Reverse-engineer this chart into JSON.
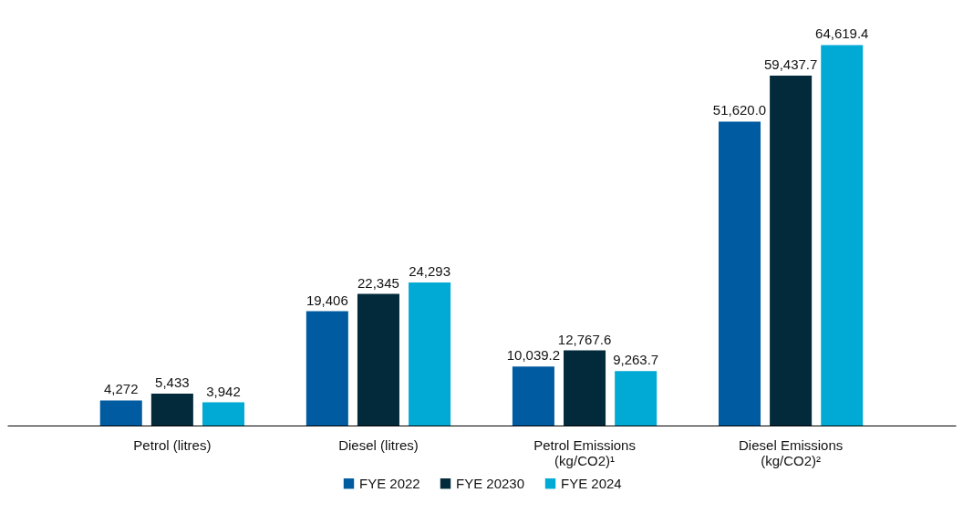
{
  "chart_data": {
    "type": "bar",
    "categories": [
      "Petrol (litres)",
      "Diesel (litres)",
      "Petrol Emissions (kg/CO2)¹",
      "Diesel Emissions (kg/CO2)²"
    ],
    "series": [
      {
        "name": "FYE 2022",
        "color": "#005ba1",
        "values": [
          4272,
          19406,
          10039.2,
          51620.0
        ],
        "value_labels": [
          "4,272",
          "19,406",
          "10,039.2",
          "51,620.0"
        ]
      },
      {
        "name": "FYE 20230",
        "color": "#022a3a",
        "values": [
          5433,
          22345,
          12767.6,
          59437.7
        ],
        "value_labels": [
          "5,433",
          "22,345",
          "12,767.6",
          "59,437.7"
        ]
      },
      {
        "name": "FYE 2024",
        "color": "#00aad4",
        "values": [
          3942,
          24293,
          9263.7,
          64619.4
        ],
        "value_labels": [
          "3,942",
          "24,293",
          "9,263.7",
          "64,619.4"
        ]
      }
    ],
    "legend": "bottom",
    "grid": false
  }
}
